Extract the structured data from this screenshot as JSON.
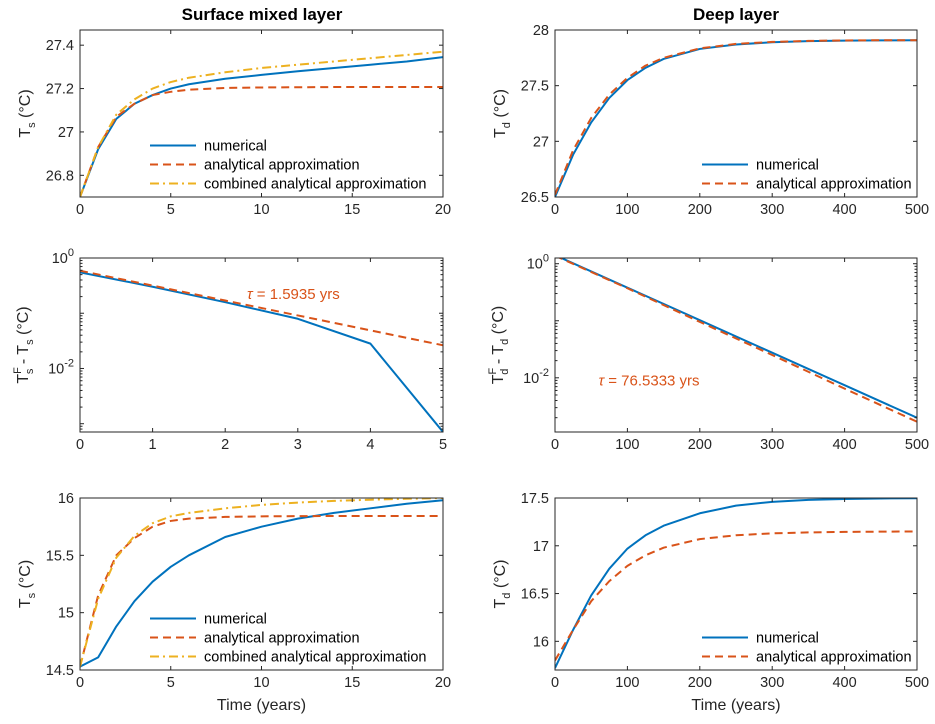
{
  "figure": {
    "column_titles": [
      "Surface mixed layer",
      "Deep layer"
    ],
    "xlabel": "Time (years)"
  },
  "colors": {
    "numerical": "#0072BD",
    "analytical": "#D95319",
    "combined": "#EDB120",
    "axis": "#262626"
  },
  "legend_labels": {
    "numerical": "numerical",
    "analytical": "analytical approximation",
    "combined": "combined analytical approximation"
  },
  "chart_data": [
    {
      "id": "p1",
      "type": "line",
      "title": "Surface mixed layer",
      "ylabel": {
        "base": "T",
        "sub": "s",
        "unit": " (°C)"
      },
      "xlim": [
        0,
        20
      ],
      "ylim": [
        26.7,
        27.47
      ],
      "xticks": [
        0,
        5,
        10,
        15,
        20
      ],
      "yticks": [
        26.8,
        27,
        27.2,
        27.4
      ],
      "yticklabels": [
        "26.8",
        "27",
        "27.2",
        "27.4"
      ],
      "legend": "bottom-right",
      "series": [
        {
          "name": "numerical",
          "style": "solid",
          "color": "#0072BD",
          "x": [
            0,
            1,
            2,
            3,
            4,
            5,
            6,
            8,
            10,
            12,
            14,
            16,
            18,
            20
          ],
          "y": [
            26.7,
            26.92,
            27.06,
            27.13,
            27.17,
            27.2,
            27.22,
            27.245,
            27.263,
            27.28,
            27.295,
            27.31,
            27.325,
            27.345
          ]
        },
        {
          "name": "analytical approximation",
          "style": "dashed",
          "color": "#D95319",
          "x": [
            0,
            1,
            2,
            3,
            4,
            5,
            6,
            8,
            10,
            12,
            14,
            16,
            18,
            20
          ],
          "y": [
            26.7,
            26.93,
            27.07,
            27.13,
            27.17,
            27.185,
            27.195,
            27.203,
            27.205,
            27.206,
            27.207,
            27.207,
            27.207,
            27.207
          ]
        },
        {
          "name": "combined analytical approximation",
          "style": "dashdot",
          "color": "#EDB120",
          "x": [
            0,
            1,
            2,
            3,
            4,
            5,
            6,
            8,
            10,
            12,
            14,
            16,
            18,
            20
          ],
          "y": [
            26.7,
            26.93,
            27.08,
            27.15,
            27.2,
            27.23,
            27.25,
            27.275,
            27.295,
            27.31,
            27.325,
            27.34,
            27.355,
            27.37
          ]
        }
      ]
    },
    {
      "id": "p2",
      "type": "line",
      "title": "Deep layer",
      "ylabel": {
        "base": "T",
        "sub": "d",
        "unit": " (°C)"
      },
      "xlim": [
        0,
        500
      ],
      "ylim": [
        26.5,
        28
      ],
      "xticks": [
        0,
        100,
        200,
        300,
        400,
        500
      ],
      "yticks": [
        26.5,
        27,
        27.5,
        28
      ],
      "yticklabels": [
        "26.5",
        "27",
        "27.5",
        "28"
      ],
      "legend": "bottom-right",
      "series": [
        {
          "name": "numerical",
          "style": "solid",
          "color": "#0072BD",
          "x": [
            0,
            25,
            50,
            75,
            100,
            125,
            150,
            200,
            250,
            300,
            350,
            400,
            450,
            500
          ],
          "y": [
            26.5,
            26.88,
            27.17,
            27.39,
            27.55,
            27.66,
            27.74,
            27.83,
            27.87,
            27.89,
            27.9,
            27.905,
            27.907,
            27.908
          ]
        },
        {
          "name": "analytical approximation",
          "style": "dashed",
          "color": "#D95319",
          "x": [
            0,
            25,
            50,
            75,
            100,
            125,
            150,
            200,
            250,
            300,
            350,
            400,
            450,
            500
          ],
          "y": [
            26.52,
            26.92,
            27.21,
            27.42,
            27.57,
            27.68,
            27.75,
            27.835,
            27.875,
            27.893,
            27.902,
            27.906,
            27.908,
            27.908
          ]
        }
      ]
    },
    {
      "id": "p3",
      "type": "line",
      "ylabel": {
        "base": "T",
        "sup": "F",
        "sub": "s",
        "mid": " - T",
        "sub2": "s",
        "unit": " (°C)"
      },
      "yscale": "log",
      "xlim": [
        0,
        5
      ],
      "ylim_log10": [
        -3.15,
        0
      ],
      "xticks": [
        0,
        1,
        2,
        3,
        4,
        5
      ],
      "yticks_log10": [
        -2,
        0
      ],
      "yticklabels": [
        {
          "base": "10",
          "exp": "-2"
        },
        {
          "base": "10",
          "exp": "0"
        }
      ],
      "annotation": {
        "text": "τ = 1.5935 yrs",
        "color": "#D95319",
        "x": 2.3,
        "y_log10": -0.65
      },
      "series": [
        {
          "name": "numerical",
          "style": "solid",
          "color": "#0072BD",
          "x": [
            0,
            1,
            2,
            3,
            4,
            5
          ],
          "y_log10": [
            -0.26,
            -0.52,
            -0.8,
            -1.1,
            -1.55,
            -3.15
          ]
        },
        {
          "name": "analytical approximation",
          "style": "dashed",
          "color": "#D95319",
          "x": [
            0,
            1,
            2,
            3,
            4,
            5
          ],
          "y_log10": [
            -0.23,
            -0.5,
            -0.77,
            -1.04,
            -1.31,
            -1.58
          ]
        }
      ]
    },
    {
      "id": "p4",
      "type": "line",
      "ylabel": {
        "base": "T",
        "sup": "F",
        "sub": "d",
        "mid": " - T",
        "sub2": "d",
        "unit": " (°C)"
      },
      "yscale": "log",
      "xlim": [
        0,
        500
      ],
      "ylim_log10": [
        -2.95,
        0.1
      ],
      "xticks": [
        0,
        100,
        200,
        300,
        400,
        500
      ],
      "yticks_log10": [
        -2,
        0
      ],
      "yticklabels": [
        {
          "base": "10",
          "exp": "-2"
        },
        {
          "base": "10",
          "exp": "0"
        }
      ],
      "annotation": {
        "text": "τ = 76.5333 yrs",
        "color": "#D95319",
        "x": 60,
        "y_log10": -2.05
      },
      "series": [
        {
          "name": "numerical",
          "style": "solid",
          "color": "#0072BD",
          "x": [
            0,
            100,
            200,
            300,
            400,
            500
          ],
          "y_log10": [
            0.15,
            -0.42,
            -0.99,
            -1.56,
            -2.13,
            -2.7
          ]
        },
        {
          "name": "analytical approximation",
          "style": "dashed",
          "color": "#D95319",
          "x": [
            0,
            100,
            200,
            300,
            400,
            500
          ],
          "y_log10": [
            0.14,
            -0.43,
            -1.02,
            -1.6,
            -2.19,
            -2.77
          ]
        }
      ]
    },
    {
      "id": "p5",
      "type": "line",
      "ylabel": {
        "base": "T",
        "sub": "s",
        "unit": " (°C)"
      },
      "xlim": [
        0,
        20
      ],
      "ylim": [
        14.5,
        16
      ],
      "xticks": [
        0,
        5,
        10,
        15,
        20
      ],
      "yticks": [
        14.5,
        15,
        15.5,
        16
      ],
      "yticklabels": [
        "14.5",
        "15",
        "15.5",
        "16"
      ],
      "legend": "bottom-right",
      "series": [
        {
          "name": "numerical",
          "style": "solid",
          "color": "#0072BD",
          "x": [
            0,
            1,
            2,
            3,
            4,
            5,
            6,
            8,
            10,
            12,
            14,
            16,
            18,
            20
          ],
          "y": [
            14.53,
            14.61,
            14.88,
            15.1,
            15.27,
            15.4,
            15.5,
            15.66,
            15.75,
            15.82,
            15.87,
            15.91,
            15.95,
            15.98
          ]
        },
        {
          "name": "analytical approximation",
          "style": "dashed",
          "color": "#D95319",
          "x": [
            0,
            1,
            2,
            3,
            4,
            5,
            6,
            8,
            10,
            12,
            14,
            16,
            18,
            20
          ],
          "y": [
            14.53,
            15.15,
            15.5,
            15.65,
            15.75,
            15.8,
            15.82,
            15.835,
            15.84,
            15.842,
            15.843,
            15.843,
            15.843,
            15.843
          ]
        },
        {
          "name": "combined analytical approximation",
          "style": "dashdot",
          "color": "#EDB120",
          "x": [
            0,
            1,
            2,
            3,
            4,
            5,
            6,
            8,
            10,
            12,
            14,
            16,
            18,
            20
          ],
          "y": [
            14.53,
            15.12,
            15.48,
            15.67,
            15.78,
            15.84,
            15.87,
            15.91,
            15.94,
            15.96,
            15.975,
            15.985,
            15.993,
            16.0
          ]
        }
      ]
    },
    {
      "id": "p6",
      "type": "line",
      "ylabel": {
        "base": "T",
        "sub": "d",
        "unit": " (°C)"
      },
      "xlim": [
        0,
        500
      ],
      "ylim": [
        15.7,
        17.5
      ],
      "xticks": [
        0,
        100,
        200,
        300,
        400,
        500
      ],
      "yticks": [
        16,
        16.5,
        17,
        17.5
      ],
      "yticklabels": [
        "16",
        "16.5",
        "17",
        "17.5"
      ],
      "legend": "bottom-right",
      "series": [
        {
          "name": "numerical",
          "style": "solid",
          "color": "#0072BD",
          "x": [
            0,
            25,
            50,
            75,
            100,
            125,
            150,
            200,
            250,
            300,
            350,
            400,
            450,
            500
          ],
          "y": [
            15.72,
            16.12,
            16.48,
            16.76,
            16.97,
            17.11,
            17.21,
            17.34,
            17.42,
            17.46,
            17.48,
            17.49,
            17.495,
            17.498
          ]
        },
        {
          "name": "analytical approximation",
          "style": "dashed",
          "color": "#D95319",
          "x": [
            0,
            25,
            50,
            75,
            100,
            125,
            150,
            200,
            250,
            300,
            350,
            400,
            450,
            500
          ],
          "y": [
            15.8,
            16.12,
            16.42,
            16.63,
            16.79,
            16.9,
            16.98,
            17.07,
            17.11,
            17.13,
            17.14,
            17.145,
            17.148,
            17.15
          ]
        }
      ]
    }
  ]
}
